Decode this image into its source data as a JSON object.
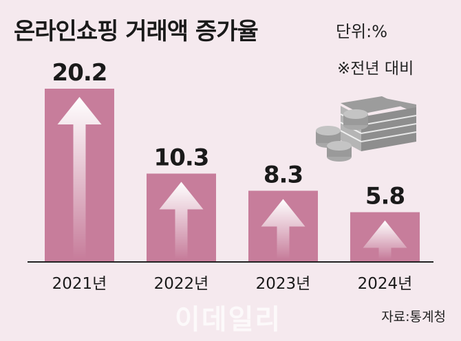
{
  "title": "온라인쇼핑 거래액 증가율",
  "unit": "단위:%",
  "note": "※전년 대비",
  "source": "자료:통계청",
  "watermark": "이데일리",
  "colors": {
    "bar": "#c77d9b",
    "background": "#f5e9ee",
    "arrow": "#ffffff"
  },
  "icons": [
    "money-stack-icon",
    "coins-icon"
  ],
  "chart_data": {
    "type": "bar",
    "categories": [
      "2021년",
      "2022년",
      "2023년",
      "2024년"
    ],
    "values": [
      20.2,
      10.3,
      8.3,
      5.8
    ],
    "title": "온라인쇼핑 거래액 증가율",
    "xlabel": "",
    "ylabel": "",
    "ylim": [
      0,
      20.2
    ],
    "grid": false,
    "legend": "none"
  }
}
